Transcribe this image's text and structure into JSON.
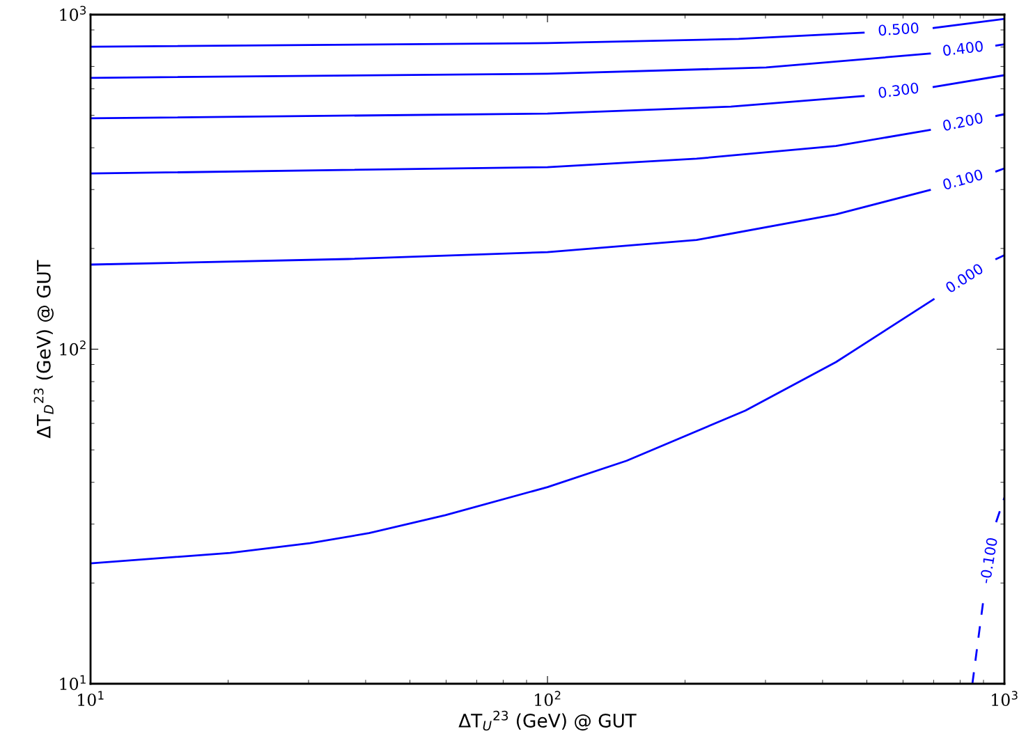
{
  "chart_data": {
    "type": "line",
    "xlabel": "ΔT$_{U}$$^{23}$ (GeV) @ GUT",
    "ylabel": "ΔT$_{D}$$^{23}$ (GeV) @ GUT",
    "log": "xy",
    "xlim": [
      10,
      1000
    ],
    "ylim": [
      10,
      1000
    ],
    "xticks": [
      {
        "value": 10,
        "label": "10$^{1}$"
      },
      {
        "value": 100,
        "label": "10$^{2}$"
      },
      {
        "value": 1000,
        "label": "10$^{3}$"
      }
    ],
    "yticks": [
      {
        "value": 10,
        "label": "10$^{1}$"
      },
      {
        "value": 100,
        "label": "10$^{2}$"
      },
      {
        "value": 1000,
        "label": "10$^{3}$"
      }
    ],
    "series": [
      {
        "name": "0.500",
        "color": "#0000ff",
        "x": [
          10,
          100,
          262,
          492,
          null,
          700,
          1000
        ],
        "values": [
          802,
          822,
          846,
          883,
          null,
          912,
          971
        ]
      },
      {
        "name": "0.400",
        "color": "#0000ff",
        "x": [
          10,
          100,
          301,
          687,
          null,
          960,
          1000
        ],
        "values": [
          647,
          666,
          695,
          765,
          null,
          808,
          815
        ]
      },
      {
        "name": "0.300",
        "color": "#0000ff",
        "x": [
          10,
          100,
          252,
          492,
          null,
          700,
          1000
        ],
        "values": [
          490,
          506,
          531,
          571,
          null,
          608,
          659
        ]
      },
      {
        "name": "0.200",
        "color": "#0000ff",
        "x": [
          10,
          100,
          212,
          428,
          687,
          null,
          960,
          1000
        ],
        "values": [
          335,
          350,
          371,
          405,
          452,
          null,
          498,
          504
        ]
      },
      {
        "name": "0.100",
        "color": "#0000ff",
        "x": [
          10,
          36.6,
          100,
          212,
          428,
          687,
          null,
          960,
          1000
        ],
        "values": [
          179,
          186,
          195,
          212,
          253,
          299,
          null,
          340,
          347
        ]
      },
      {
        "name": "0.000",
        "color": "#0000ff",
        "x": [
          10,
          20.2,
          30.2,
          40.7,
          59.8,
          100,
          149,
          271,
          428,
          700,
          null,
          960,
          1000
        ],
        "values": [
          22.9,
          24.6,
          26.3,
          28.2,
          31.9,
          38.7,
          46.4,
          65.5,
          91.5,
          141,
          null,
          186,
          191
        ]
      },
      {
        "name": "-0.100",
        "color": "#0000ff",
        "line_style": "dashed",
        "x": [
          851,
          900,
          null,
          959,
          1000
        ],
        "values": [
          10,
          17.9,
          null,
          30.4,
          36.0
        ]
      }
    ]
  }
}
